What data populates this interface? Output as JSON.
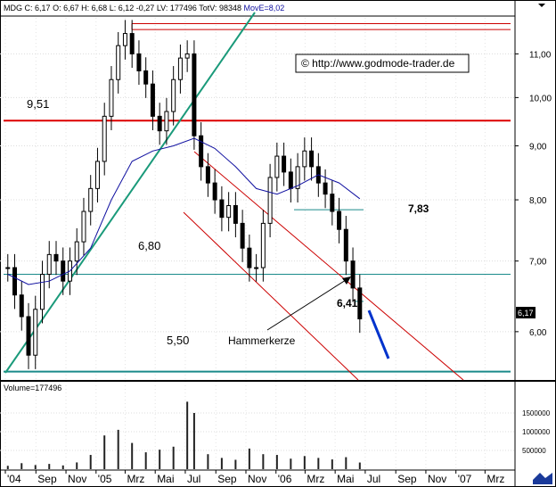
{
  "header": {
    "symbol": "MDG",
    "c_label": "C:",
    "c_value": "6,17",
    "o_label": "O:",
    "o_value": "6,67",
    "h_label": "H:",
    "h_value": "6,68",
    "l_label": "L:",
    "l_value": "6,12",
    "change": "-0,27",
    "lv_label": "LV:",
    "lv_value": "177496",
    "totv_label": "TotV:",
    "totv_value": "98348",
    "mov_label": "MovE=",
    "mov_value": "8,02"
  },
  "watermark": "© http://www.godmode-trader.de",
  "volume_label": "Volume=177496",
  "current_price_tag": "6,17",
  "annotations": {
    "level_951": "9,51",
    "level_680": "6,80",
    "level_550": "5,50",
    "level_783": "7,83",
    "level_641": "6,41",
    "hammer_label": "Hammerkerze"
  },
  "colors": {
    "support_teal": "#1a8a8a",
    "trend_green": "#1a9a7a",
    "resistance_red": "#dd0000",
    "channel_red": "#cc0000",
    "moving_avg": "#1010a0",
    "price": "#000000",
    "projection": "#0033cc",
    "current_tag_bg": "#000000"
  },
  "chart_data": {
    "type": "candlestick",
    "x_axis_ticks": [
      "'04",
      "Sep",
      "Nov",
      "'05",
      "Mrz",
      "Mai",
      "Jul",
      "Sep",
      "Nov",
      "'06",
      "Mrz",
      "Mai",
      "Jul",
      "Sep",
      "Nov",
      "'07",
      "Mrz"
    ],
    "price_axis": {
      "ticks": [
        "11,00",
        "10,00",
        "9,00",
        "8,00",
        "7,00",
        "6,00"
      ],
      "ylim": [
        5.4,
        11.9
      ],
      "scale": "log"
    },
    "volume_axis": {
      "ticks": [
        "1500000",
        "1000000",
        "500000"
      ],
      "ylim": [
        0,
        2000000
      ]
    },
    "horizontal_levels": [
      {
        "label": "9,51",
        "value": 9.51,
        "color": "red"
      },
      {
        "label": "6,80",
        "value": 6.8,
        "color": "teal"
      },
      {
        "label": "5,50",
        "value": 5.5,
        "color": "teal"
      },
      {
        "label": "7,83",
        "value": 7.83,
        "color": "teal"
      },
      {
        "label": "6,41",
        "value": 6.41,
        "color": "teal"
      }
    ],
    "price_series": [
      {
        "date": "2004-07-06",
        "close": 6.9
      },
      {
        "date": "2004-07-20",
        "close": 6.5
      },
      {
        "date": "2004-08-03",
        "close": 6.2
      },
      {
        "date": "2004-08-17",
        "close": 5.7
      },
      {
        "date": "2004-08-31",
        "close": 6.3
      },
      {
        "date": "2004-09-14",
        "close": 6.8
      },
      {
        "date": "2004-09-28",
        "close": 7.1
      },
      {
        "date": "2004-10-12",
        "close": 7.0
      },
      {
        "date": "2004-10-26",
        "close": 6.7
      },
      {
        "date": "2004-11-09",
        "close": 7.0
      },
      {
        "date": "2004-11-23",
        "close": 7.3
      },
      {
        "date": "2004-12-07",
        "close": 7.8
      },
      {
        "date": "2004-12-21",
        "close": 8.2
      },
      {
        "date": "2005-01-04",
        "close": 8.7
      },
      {
        "date": "2005-01-18",
        "close": 9.6
      },
      {
        "date": "2005-02-01",
        "close": 10.4
      },
      {
        "date": "2005-02-15",
        "close": 11.2
      },
      {
        "date": "2005-03-01",
        "close": 11.5
      },
      {
        "date": "2005-03-15",
        "close": 11.0
      },
      {
        "date": "2005-03-29",
        "close": 10.6
      },
      {
        "date": "2005-04-12",
        "close": 10.3
      },
      {
        "date": "2005-04-26",
        "close": 9.6
      },
      {
        "date": "2005-05-10",
        "close": 9.3
      },
      {
        "date": "2005-05-24",
        "close": 9.7
      },
      {
        "date": "2005-06-07",
        "close": 10.4
      },
      {
        "date": "2005-06-21",
        "close": 10.9
      },
      {
        "date": "2005-07-05",
        "close": 11.0
      },
      {
        "date": "2005-07-19",
        "close": 9.2
      },
      {
        "date": "2005-08-02",
        "close": 8.6
      },
      {
        "date": "2005-08-16",
        "close": 8.3
      },
      {
        "date": "2005-08-30",
        "close": 8.0
      },
      {
        "date": "2005-09-13",
        "close": 7.7
      },
      {
        "date": "2005-09-27",
        "close": 7.9
      },
      {
        "date": "2005-10-11",
        "close": 7.6
      },
      {
        "date": "2005-10-25",
        "close": 7.2
      },
      {
        "date": "2005-11-08",
        "close": 6.9
      },
      {
        "date": "2005-11-22",
        "close": 6.9
      },
      {
        "date": "2005-12-06",
        "close": 7.6
      },
      {
        "date": "2005-12-20",
        "close": 8.4
      },
      {
        "date": "2006-01-03",
        "close": 8.8
      },
      {
        "date": "2006-01-17",
        "close": 8.5
      },
      {
        "date": "2006-01-31",
        "close": 8.2
      },
      {
        "date": "2006-02-14",
        "close": 8.6
      },
      {
        "date": "2006-02-28",
        "close": 8.9
      },
      {
        "date": "2006-03-14",
        "close": 8.6
      },
      {
        "date": "2006-03-28",
        "close": 8.3
      },
      {
        "date": "2006-04-11",
        "close": 8.1
      },
      {
        "date": "2006-04-25",
        "close": 7.8
      },
      {
        "date": "2006-05-09",
        "close": 7.5
      },
      {
        "date": "2006-05-23",
        "close": 7.0
      },
      {
        "date": "2006-06-06",
        "close": 6.6
      },
      {
        "date": "2006-06-20",
        "close": 6.17
      }
    ],
    "moving_average": [
      {
        "date": "2004-07-06",
        "value": 6.8
      },
      {
        "date": "2004-08-17",
        "value": 6.65
      },
      {
        "date": "2004-09-28",
        "value": 6.7
      },
      {
        "date": "2004-11-09",
        "value": 6.85
      },
      {
        "date": "2004-12-21",
        "value": 7.2
      },
      {
        "date": "2005-02-01",
        "value": 8.0
      },
      {
        "date": "2005-03-15",
        "value": 8.7
      },
      {
        "date": "2005-04-26",
        "value": 8.9
      },
      {
        "date": "2005-06-07",
        "value": 9.0
      },
      {
        "date": "2005-07-19",
        "value": 9.15
      },
      {
        "date": "2005-08-30",
        "value": 8.95
      },
      {
        "date": "2005-10-11",
        "value": 8.6
      },
      {
        "date": "2005-11-22",
        "value": 8.2
      },
      {
        "date": "2006-01-03",
        "value": 8.1
      },
      {
        "date": "2006-02-14",
        "value": 8.25
      },
      {
        "date": "2006-03-28",
        "value": 8.45
      },
      {
        "date": "2006-05-09",
        "value": 8.3
      },
      {
        "date": "2006-06-20",
        "value": 8.02
      }
    ],
    "volume_series": [
      {
        "date": "2004-07-06",
        "volume": 90000
      },
      {
        "date": "2004-08-03",
        "volume": 160000
      },
      {
        "date": "2004-08-31",
        "volume": 110000
      },
      {
        "date": "2004-09-28",
        "volume": 140000
      },
      {
        "date": "2004-10-26",
        "volume": 100000
      },
      {
        "date": "2004-11-23",
        "volume": 180000
      },
      {
        "date": "2004-12-21",
        "volume": 380000
      },
      {
        "date": "2005-01-18",
        "volume": 900000
      },
      {
        "date": "2005-02-15",
        "volume": 1050000
      },
      {
        "date": "2005-03-15",
        "volume": 700000
      },
      {
        "date": "2005-04-12",
        "volume": 450000
      },
      {
        "date": "2005-05-10",
        "volume": 520000
      },
      {
        "date": "2005-06-07",
        "volume": 600000
      },
      {
        "date": "2005-07-05",
        "volume": 1800000
      },
      {
        "date": "2005-07-19",
        "volume": 1500000
      },
      {
        "date": "2005-08-16",
        "volume": 400000
      },
      {
        "date": "2005-09-13",
        "volume": 300000
      },
      {
        "date": "2005-10-11",
        "volume": 250000
      },
      {
        "date": "2005-11-08",
        "volume": 550000
      },
      {
        "date": "2005-12-06",
        "volume": 400000
      },
      {
        "date": "2006-01-03",
        "volume": 380000
      },
      {
        "date": "2006-01-31",
        "volume": 280000
      },
      {
        "date": "2006-02-28",
        "volume": 350000
      },
      {
        "date": "2006-03-28",
        "volume": 300000
      },
      {
        "date": "2006-04-25",
        "volume": 260000
      },
      {
        "date": "2006-05-23",
        "volume": 320000
      },
      {
        "date": "2006-06-20",
        "volume": 177496
      }
    ]
  }
}
